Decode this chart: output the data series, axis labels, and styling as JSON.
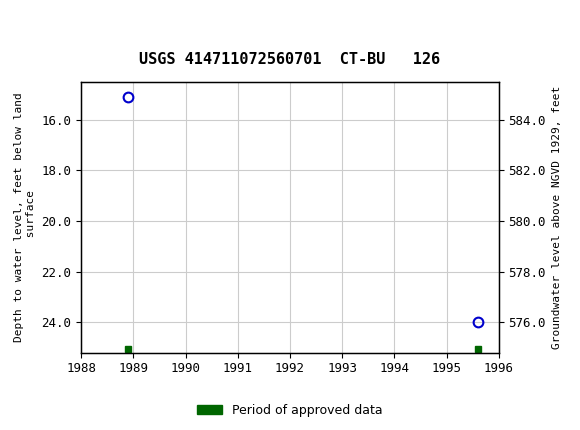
{
  "title": "USGS 414711072560701  CT-BU   126",
  "ylabel_left": "Depth to water level, feet below land\n surface",
  "ylabel_right": "Groundwater level above NGVD 1929, feet",
  "xlim": [
    1988,
    1996
  ],
  "ylim_left": [
    14.5,
    25.2
  ],
  "land_surface": 600.0,
  "xticks": [
    1988,
    1989,
    1990,
    1991,
    1992,
    1993,
    1994,
    1995,
    1996
  ],
  "yticks_left": [
    16.0,
    18.0,
    20.0,
    22.0,
    24.0
  ],
  "yticks_right": [
    584.0,
    582.0,
    580.0,
    578.0,
    576.0
  ],
  "data_points": [
    {
      "x": 1988.9,
      "y_depth": 15.1
    },
    {
      "x": 1995.6,
      "y_depth": 24.0
    }
  ],
  "approved_markers": [
    {
      "x": 1988.9,
      "y_depth": 25.05
    },
    {
      "x": 1995.6,
      "y_depth": 25.05
    }
  ],
  "point_color": "#0000cc",
  "approved_color": "#006600",
  "grid_color": "#cccccc",
  "background_color": "#ffffff",
  "header_color": "#1a6b3c",
  "header_text_color": "#ffffff",
  "legend_label": "Period of approved data",
  "font_family": "monospace"
}
